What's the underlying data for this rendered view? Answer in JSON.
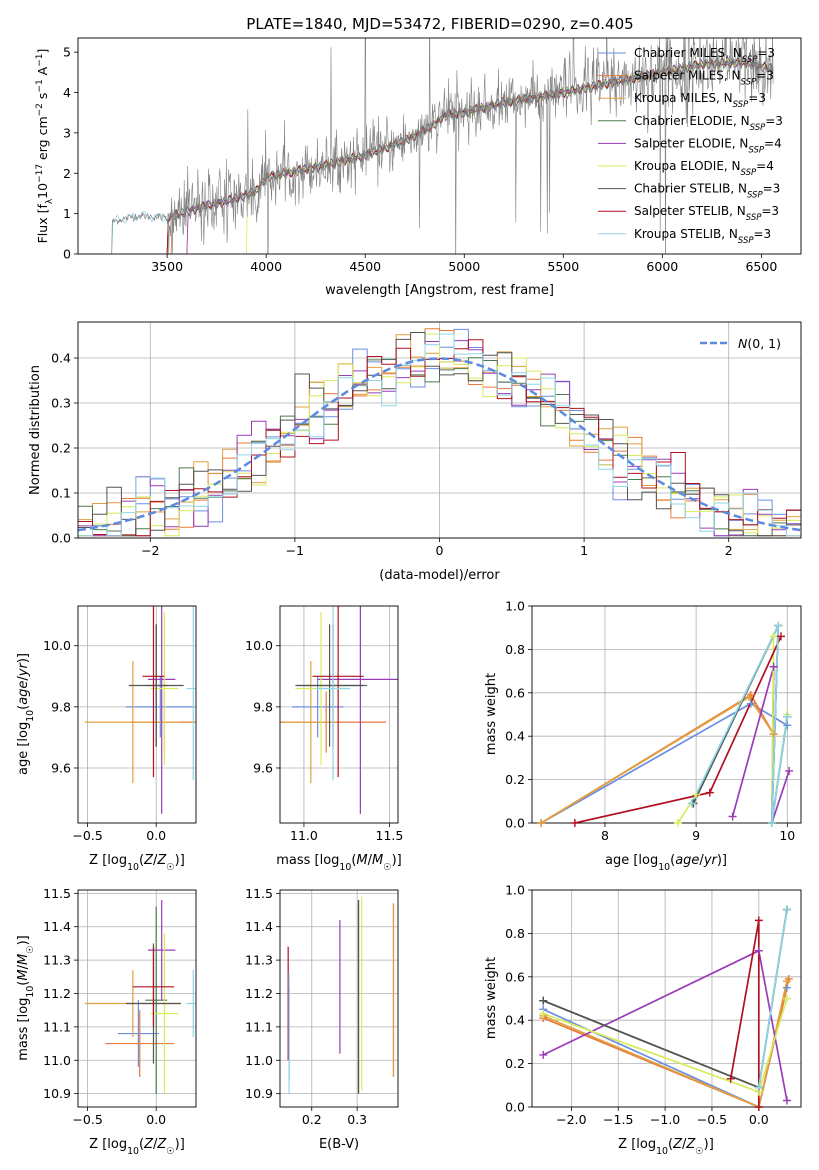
{
  "figure_title": "PLATE=1840, MJD=53472, FIBERID=0290, z=0.405",
  "legend_models": [
    {
      "name": "Chabrier MILES",
      "nssp": "3",
      "color": "#6b8fe0"
    },
    {
      "name": "Salpeter MILES",
      "nssp": "3",
      "color": "#e87a3a"
    },
    {
      "name": "Kroupa MILES",
      "nssp": "3",
      "color": "#e0a040"
    },
    {
      "name": "Chabrier ELODIE",
      "nssp": "3",
      "color": "#4c7a4c"
    },
    {
      "name": "Salpeter ELODIE",
      "nssp": "4",
      "color": "#9b3cb7"
    },
    {
      "name": "Kroupa ELODIE",
      "nssp": "4",
      "color": "#d8ec5a"
    },
    {
      "name": "Chabrier STELIB",
      "nssp": "3",
      "color": "#555555"
    },
    {
      "name": "Salpeter STELIB",
      "nssp": "3",
      "color": "#b01020"
    },
    {
      "name": "Kroupa STELIB",
      "nssp": "3",
      "color": "#8fd6e8"
    }
  ],
  "chart_data": [
    {
      "id": "spectrum",
      "type": "line",
      "title": "PLATE=1840, MJD=53472, FIBERID=0290, z=0.405",
      "xlabel": "wavelength [Angstrom, rest frame]",
      "ylabel": "Flux [f_λ 10^-17 erg cm^-2 s^-1 A^-1]",
      "xlim": [
        3050,
        6700
      ],
      "ylim": [
        0,
        5.35
      ],
      "xticks": [
        3500,
        4000,
        4500,
        5000,
        5500,
        6000,
        6500
      ],
      "yticks": [
        0,
        1,
        2,
        3,
        4,
        5
      ],
      "grid": false,
      "legend_position": "upper right",
      "data_series": {
        "name": "data",
        "color": "#808080"
      },
      "continuum_points": [
        [
          3220,
          0.8
        ],
        [
          3350,
          0.95
        ],
        [
          3500,
          0.9
        ],
        [
          3700,
          1.2
        ],
        [
          3800,
          1.3
        ],
        [
          3950,
          1.55
        ],
        [
          4000,
          1.9
        ],
        [
          4100,
          2.0
        ],
        [
          4300,
          2.2
        ],
        [
          4500,
          2.45
        ],
        [
          4700,
          2.8
        ],
        [
          4850,
          3.2
        ],
        [
          4900,
          3.45
        ],
        [
          5000,
          3.5
        ],
        [
          5200,
          3.75
        ],
        [
          5500,
          4.0
        ],
        [
          5800,
          4.3
        ],
        [
          6000,
          4.5
        ],
        [
          6200,
          4.7
        ],
        [
          6400,
          4.75
        ],
        [
          6550,
          4.6
        ]
      ],
      "model_start_wavelengths": [
        3500,
        3520,
        3600,
        3500,
        3600,
        3900,
        3500,
        3500,
        3220
      ]
    },
    {
      "id": "residual-histogram",
      "type": "bar",
      "xlabel": "(data-model)/error",
      "ylabel": "Normed distribution",
      "xlim": [
        -2.5,
        2.5
      ],
      "ylim": [
        0,
        0.48
      ],
      "xticks": [
        -2,
        -1,
        0,
        1,
        2
      ],
      "yticks": [
        0.0,
        0.1,
        0.2,
        0.3,
        0.4
      ],
      "grid": true,
      "bin_width": 0.1,
      "reference_curve": {
        "name": "N(0,1)",
        "type": "gaussian",
        "mean": 0,
        "sigma": 1,
        "color": "#5b8ae0"
      },
      "legend_position": "upper right"
    },
    {
      "id": "age-vs-metallicity",
      "type": "scatter",
      "xlabel": "Z [log10(Z/Z☉)]",
      "ylabel": "age [log10(age/yr)]",
      "xlim": [
        -0.57,
        0.29
      ],
      "ylim": [
        9.42,
        10.13
      ],
      "xticks": [
        -0.5,
        0.0
      ],
      "yticks": [
        9.6,
        9.8,
        10.0
      ],
      "grid": true,
      "points": [
        {
          "model": "Chabrier MILES",
          "x": 0.03,
          "xerr": 0.25,
          "y": 9.8,
          "yerr": 0.1
        },
        {
          "model": "Salpeter MILES",
          "x": 0.06,
          "xerr": 0.25,
          "y": 9.75,
          "yerr": 0.1
        },
        {
          "model": "Kroupa MILES",
          "x": -0.17,
          "xerr": 0.35,
          "y": 9.75,
          "yerr": 0.2
        },
        {
          "model": "Chabrier ELODIE",
          "x": 0.0,
          "xerr": 0.08,
          "y": 9.87,
          "yerr": 0.2
        },
        {
          "model": "Salpeter ELODIE",
          "x": 0.04,
          "xerr": 0.1,
          "y": 9.89,
          "yerr": 0.44
        },
        {
          "model": "Kroupa ELODIE",
          "x": 0.06,
          "xerr": 0.1,
          "y": 9.86,
          "yerr": 0.25
        },
        {
          "model": "Chabrier STELIB",
          "x": 0.0,
          "xerr": 0.2,
          "y": 9.87,
          "yerr": 0.2
        },
        {
          "model": "Salpeter STELIB",
          "x": -0.02,
          "xerr": 0.08,
          "y": 9.9,
          "yerr": 0.33
        },
        {
          "model": "Kroupa STELIB",
          "x": 0.27,
          "xerr": 0.05,
          "y": 9.86,
          "yerr": 0.3
        }
      ]
    },
    {
      "id": "age-vs-mass",
      "type": "scatter",
      "xlabel": "mass [log10(M/M☉)]",
      "ylabel": "",
      "xlim": [
        10.86,
        11.55
      ],
      "ylim": [
        9.42,
        10.13
      ],
      "xticks": [
        11.0,
        11.5
      ],
      "yticks": [
        9.6,
        9.8,
        10.0
      ],
      "grid": true,
      "points": [
        {
          "model": "Chabrier MILES",
          "x": 11.08,
          "xerr": 0.15,
          "y": 9.8,
          "yerr": 0.1
        },
        {
          "model": "Salpeter MILES",
          "x": 11.13,
          "xerr": 0.35,
          "y": 9.75,
          "yerr": 0.1
        },
        {
          "model": "Kroupa MILES",
          "x": 11.04,
          "xerr": 0.15,
          "y": 9.75,
          "yerr": 0.2
        },
        {
          "model": "Chabrier ELODIE",
          "x": 11.17,
          "xerr": 0.2,
          "y": 9.87,
          "yerr": 0.2
        },
        {
          "model": "Salpeter ELODIE",
          "x": 11.33,
          "xerr": 0.25,
          "y": 9.89,
          "yerr": 0.44
        },
        {
          "model": "Kroupa ELODIE",
          "x": 11.1,
          "xerr": 0.15,
          "y": 9.86,
          "yerr": 0.25
        },
        {
          "model": "Chabrier STELIB",
          "x": 11.15,
          "xerr": 0.2,
          "y": 9.87,
          "yerr": 0.2
        },
        {
          "model": "Salpeter STELIB",
          "x": 11.2,
          "xerr": 0.15,
          "y": 9.9,
          "yerr": 0.33
        },
        {
          "model": "Kroupa STELIB",
          "x": 11.17,
          "xerr": 0.1,
          "y": 9.86,
          "yerr": 0.3
        }
      ]
    },
    {
      "id": "mass-weight-vs-age",
      "type": "line",
      "xlabel": "age [log10(age/yr)]",
      "ylabel": "mass weight",
      "xlim": [
        7.2,
        10.15
      ],
      "ylim": [
        0,
        1
      ],
      "xticks": [
        8,
        9,
        10
      ],
      "yticks": [
        0.0,
        0.2,
        0.4,
        0.6,
        0.8,
        1.0
      ],
      "grid": true,
      "series": [
        {
          "name": "Chabrier MILES",
          "points": [
            [
              7.3,
              0.0
            ],
            [
              9.6,
              0.55
            ],
            [
              10.0,
              0.45
            ]
          ]
        },
        {
          "name": "Salpeter MILES",
          "points": [
            [
              7.3,
              0.0
            ],
            [
              9.6,
              0.59
            ],
            [
              9.85,
              0.41
            ]
          ]
        },
        {
          "name": "Kroupa MILES",
          "points": [
            [
              7.3,
              0.0
            ],
            [
              9.58,
              0.58
            ],
            [
              9.85,
              0.41
            ]
          ]
        },
        {
          "name": "Chabrier ELODIE",
          "points": [
            [
              8.97,
              0.09
            ],
            [
              9.9,
              0.91
            ],
            [
              9.83,
              0.0
            ],
            [
              10.0,
              0.49
            ]
          ]
        },
        {
          "name": "Salpeter ELODIE",
          "points": [
            [
              9.4,
              0.03
            ],
            [
              9.85,
              0.72
            ],
            [
              9.83,
              0.0
            ],
            [
              10.02,
              0.24
            ]
          ]
        },
        {
          "name": "Kroupa ELODIE",
          "points": [
            [
              8.8,
              0.0
            ],
            [
              9.0,
              0.13
            ],
            [
              9.85,
              0.86
            ],
            [
              9.83,
              0.0
            ],
            [
              10.0,
              0.5
            ]
          ]
        },
        {
          "name": "Chabrier STELIB",
          "points": [
            [
              8.97,
              0.09
            ],
            [
              9.9,
              0.91
            ],
            [
              9.83,
              0.0
            ],
            [
              10.0,
              0.49
            ]
          ]
        },
        {
          "name": "Salpeter STELIB",
          "points": [
            [
              7.67,
              0.0
            ],
            [
              9.15,
              0.14
            ],
            [
              9.93,
              0.86
            ]
          ]
        },
        {
          "name": "Kroupa STELIB",
          "points": [
            [
              8.95,
              0.09
            ],
            [
              9.9,
              0.91
            ],
            [
              9.83,
              0.0
            ],
            [
              10.0,
              0.49
            ]
          ]
        }
      ]
    },
    {
      "id": "mass-vs-metallicity",
      "type": "scatter",
      "xlabel": "Z [log10(Z/Z☉)]",
      "ylabel": "mass [log10(M/M☉)]",
      "xlim": [
        -0.57,
        0.29
      ],
      "ylim": [
        10.86,
        11.51
      ],
      "xticks": [
        -0.5,
        0.0
      ],
      "yticks": [
        10.9,
        11.0,
        11.1,
        11.2,
        11.3,
        11.4,
        11.5
      ],
      "grid": true,
      "points": [
        {
          "model": "Chabrier MILES",
          "x": -0.13,
          "xerr": 0.15,
          "y": 11.08,
          "yerr": 0.1
        },
        {
          "model": "Salpeter MILES",
          "x": -0.12,
          "xerr": 0.25,
          "y": 11.05,
          "yerr": 0.1
        },
        {
          "model": "Kroupa MILES",
          "x": -0.17,
          "xerr": 0.35,
          "y": 11.17,
          "yerr": 0.1
        },
        {
          "model": "Chabrier ELODIE",
          "x": 0.0,
          "xerr": 0.08,
          "y": 11.18,
          "yerr": 0.28
        },
        {
          "model": "Salpeter ELODIE",
          "x": 0.04,
          "xerr": 0.1,
          "y": 11.33,
          "yerr": 0.15
        },
        {
          "model": "Kroupa ELODIE",
          "x": 0.06,
          "xerr": 0.1,
          "y": 11.14,
          "yerr": 0.24
        },
        {
          "model": "Chabrier STELIB",
          "x": -0.02,
          "xerr": 0.2,
          "y": 11.17,
          "yerr": 0.18
        },
        {
          "model": "Salpeter STELIB",
          "x": -0.02,
          "xerr": 0.15,
          "y": 11.22,
          "yerr": 0.12
        },
        {
          "model": "Kroupa STELIB",
          "x": 0.27,
          "xerr": 0.05,
          "y": 11.17,
          "yerr": 0.1
        }
      ]
    },
    {
      "id": "mass-vs-ebv",
      "type": "scatter",
      "xlabel": "E(B-V)",
      "ylabel": "",
      "xlim": [
        0.13,
        0.39
      ],
      "ylim": [
        10.86,
        11.51
      ],
      "xticks": [
        0.2,
        0.3
      ],
      "yticks": [
        10.9,
        11.0,
        11.1,
        11.2,
        11.3,
        11.4,
        11.5
      ],
      "grid": true,
      "points": [
        {
          "model": "Chabrier MILES",
          "x": 0.15,
          "y": 11.08,
          "yerr": 0.14
        },
        {
          "model": "Salpeter MILES",
          "x": 0.38,
          "y": 11.21,
          "yerr": 0.26
        },
        {
          "model": "Kroupa MILES",
          "x": 0.38,
          "y": 11.21,
          "yerr": 0.26
        },
        {
          "model": "Chabrier ELODIE",
          "x": 0.303,
          "y": 11.19,
          "yerr": 0.29
        },
        {
          "model": "Salpeter ELODIE",
          "x": 0.262,
          "y": 11.22,
          "yerr": 0.2
        },
        {
          "model": "Kroupa ELODIE",
          "x": 0.31,
          "y": 11.2,
          "yerr": 0.29
        },
        {
          "model": "Chabrier STELIB",
          "x": 0.303,
          "y": 11.19,
          "yerr": 0.29
        },
        {
          "model": "Salpeter STELIB",
          "x": 0.148,
          "y": 11.17,
          "yerr": 0.17
        },
        {
          "model": "Kroupa STELIB",
          "x": 0.15,
          "y": 11.08,
          "yerr": 0.18
        }
      ]
    },
    {
      "id": "mass-weight-vs-metallicity",
      "type": "line",
      "xlabel": "Z [log10(Z/Z☉)]",
      "ylabel": "mass weight",
      "xlim": [
        -2.42,
        0.45
      ],
      "ylim": [
        0,
        1
      ],
      "xticks": [
        -2.0,
        -1.5,
        -1.0,
        -0.5,
        0.0
      ],
      "yticks": [
        0.0,
        0.2,
        0.4,
        0.6,
        0.8,
        1.0
      ],
      "grid": true,
      "series": [
        {
          "name": "Chabrier MILES",
          "points": [
            [
              -2.3,
              0.45
            ],
            [
              0.0,
              0.0
            ],
            [
              0.3,
              0.55
            ]
          ]
        },
        {
          "name": "Salpeter MILES",
          "points": [
            [
              -2.3,
              0.41
            ],
            [
              0.0,
              0.0
            ],
            [
              0.32,
              0.59
            ]
          ]
        },
        {
          "name": "Kroupa MILES",
          "points": [
            [
              -2.3,
              0.42
            ],
            [
              0.0,
              0.0
            ],
            [
              0.3,
              0.58
            ]
          ]
        },
        {
          "name": "Chabrier ELODIE",
          "points": [
            [
              -2.3,
              0.49
            ],
            [
              0.0,
              0.09
            ],
            [
              0.3,
              0.91
            ]
          ]
        },
        {
          "name": "Salpeter ELODIE",
          "points": [
            [
              -2.3,
              0.24
            ],
            [
              0.0,
              0.72
            ],
            [
              0.3,
              0.03
            ]
          ]
        },
        {
          "name": "Kroupa ELODIE",
          "points": [
            [
              -2.3,
              0.43
            ],
            [
              0.0,
              0.07
            ],
            [
              0.3,
              0.5
            ]
          ]
        },
        {
          "name": "Chabrier STELIB",
          "points": [
            [
              -2.3,
              0.49
            ],
            [
              0.0,
              0.09
            ],
            [
              0.3,
              0.91
            ]
          ]
        },
        {
          "name": "Salpeter STELIB",
          "points": [
            [
              -0.3,
              0.13
            ],
            [
              0.0,
              0.86
            ],
            [
              0.0,
              0.0
            ]
          ]
        },
        {
          "name": "Kroupa STELIB",
          "points": [
            [
              0.0,
              0.09
            ],
            [
              0.3,
              0.91
            ]
          ]
        }
      ]
    }
  ]
}
